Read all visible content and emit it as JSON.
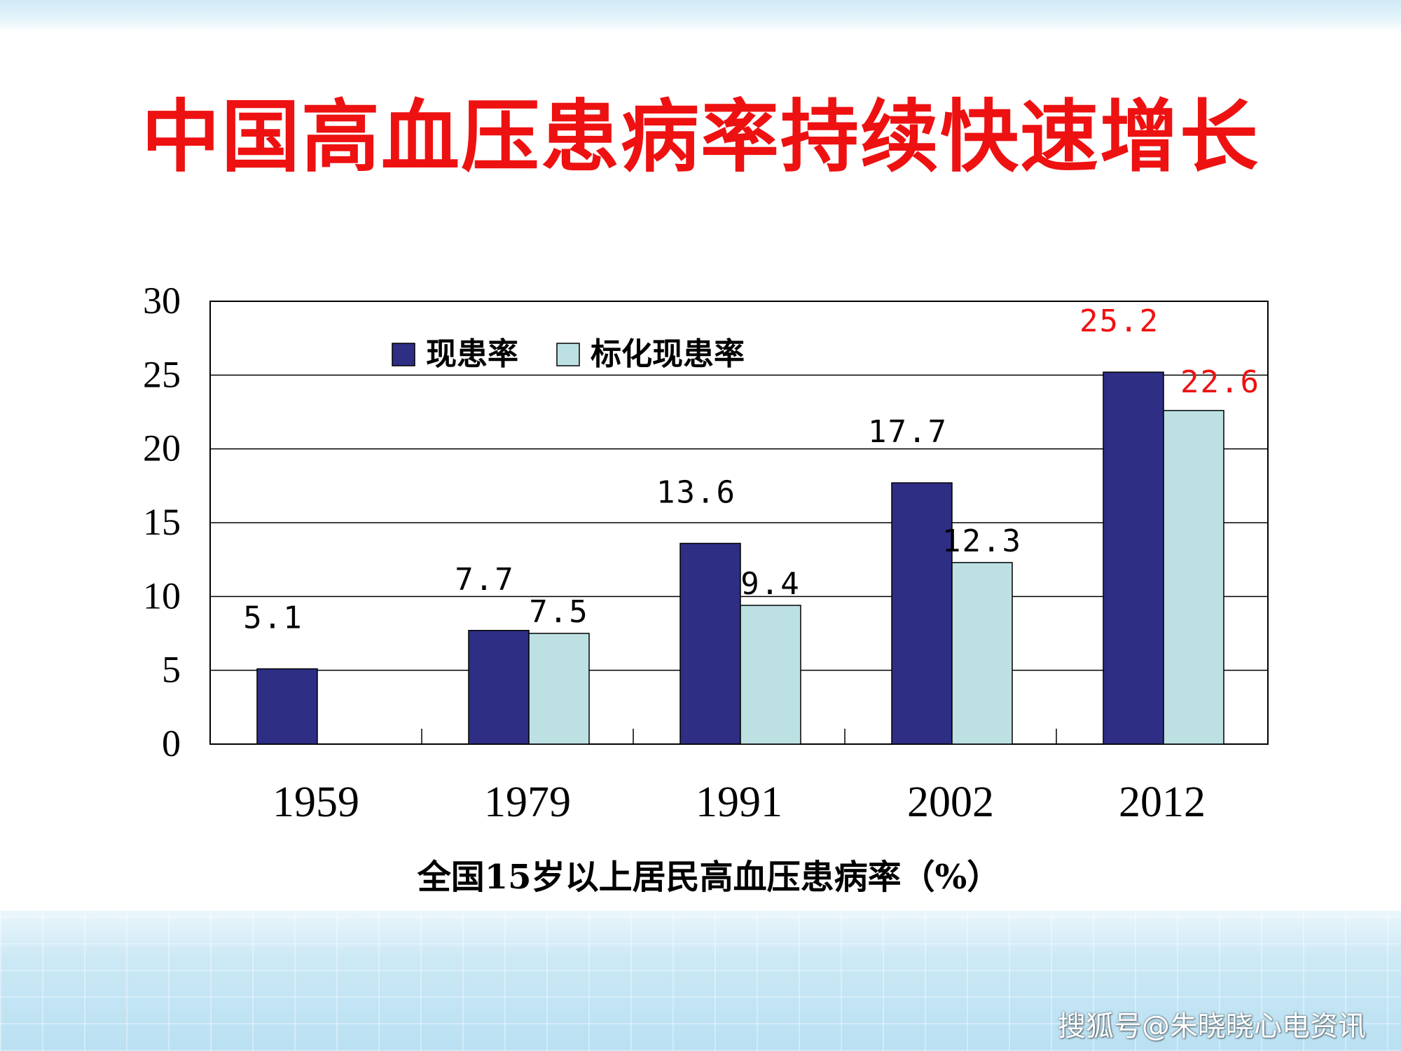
{
  "title": "中国高血压患病率持续快速增长",
  "watermark": "搜狐号@朱晓晓心电资讯",
  "colors": {
    "title": "#ee1111",
    "series1": "#2e2e85",
    "series2": "#bde1e3",
    "highlight_label": "#ee1111"
  },
  "chart_data": {
    "type": "bar",
    "xlabel": "全国15岁以上居民高血压患病率（%）",
    "ylabel": "",
    "ylim": [
      0,
      30
    ],
    "yticks": [
      0,
      5,
      10,
      15,
      20,
      25,
      30
    ],
    "grid": true,
    "legend_position": "top-left",
    "categories": [
      "1959",
      "1979",
      "1991",
      "2002",
      "2012"
    ],
    "series": [
      {
        "name": "现患率",
        "values": [
          5.1,
          7.7,
          13.6,
          17.7,
          25.2
        ],
        "labels": [
          "5.1",
          "7.7",
          "13.6",
          "17.7",
          "25.2"
        ]
      },
      {
        "name": "标化现患率",
        "values": [
          null,
          7.5,
          9.4,
          12.3,
          22.6
        ],
        "labels": [
          "",
          "7.5",
          "9.4",
          "12.3",
          "22.6"
        ]
      }
    ]
  }
}
